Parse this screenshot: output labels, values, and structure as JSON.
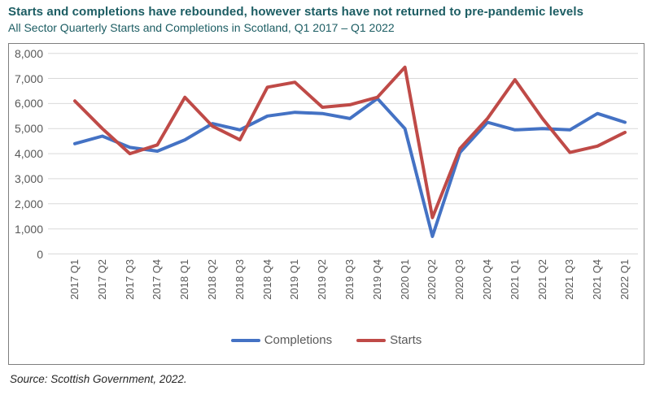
{
  "header": {
    "title": "Starts and completions have rebounded, however starts have not returned to pre-pandemic levels",
    "subtitle": "All Sector Quarterly Starts and Completions in Scotland, Q1 2017 – Q1 2022"
  },
  "source_note": "Source: Scottish Government, 2022.",
  "colors": {
    "completions": "#4472C4",
    "starts": "#BF4A47",
    "title_text": "#1C5D63",
    "axis_text": "#595959",
    "gridline": "#D9D9D9",
    "frame_border": "#7F7F7F"
  },
  "chart_data": {
    "type": "line",
    "title": "All Sector Quarterly Starts and Completions in Scotland, Q1 2017 – Q1 2022",
    "categories": [
      "2017 Q1",
      "2017 Q2",
      "2017 Q3",
      "2017 Q4",
      "2018 Q1",
      "2018 Q2",
      "2018 Q3",
      "2018 Q4",
      "2019 Q1",
      "2019 Q2",
      "2019 Q3",
      "2019 Q4",
      "2020 Q1",
      "2020 Q2",
      "2020 Q3",
      "2020 Q4",
      "2021 Q1",
      "2021 Q2",
      "2021 Q3",
      "2021 Q4",
      "2022 Q1"
    ],
    "series": [
      {
        "name": "Completions",
        "color_key": "completions",
        "values": [
          4400,
          4700,
          4250,
          4100,
          4550,
          5200,
          4950,
          5500,
          5650,
          5600,
          5400,
          6200,
          5000,
          700,
          4050,
          5250,
          4950,
          5000,
          4950,
          5600,
          5250
        ]
      },
      {
        "name": "Starts",
        "color_key": "starts",
        "values": [
          6100,
          5000,
          4000,
          4350,
          6250,
          5100,
          4550,
          6650,
          6850,
          5850,
          5950,
          6250,
          7450,
          1450,
          4200,
          5400,
          6950,
          5400,
          4050,
          4300,
          4850
        ]
      }
    ],
    "xlabel": "",
    "ylabel": "",
    "ylim": [
      0,
      8000
    ],
    "ytick_step": 1000,
    "ytick_labels": [
      "0",
      "1,000",
      "2,000",
      "3,000",
      "4,000",
      "5,000",
      "6,000",
      "7,000",
      "8,000"
    ],
    "grid": "horizontal",
    "legend_position": "bottom"
  }
}
